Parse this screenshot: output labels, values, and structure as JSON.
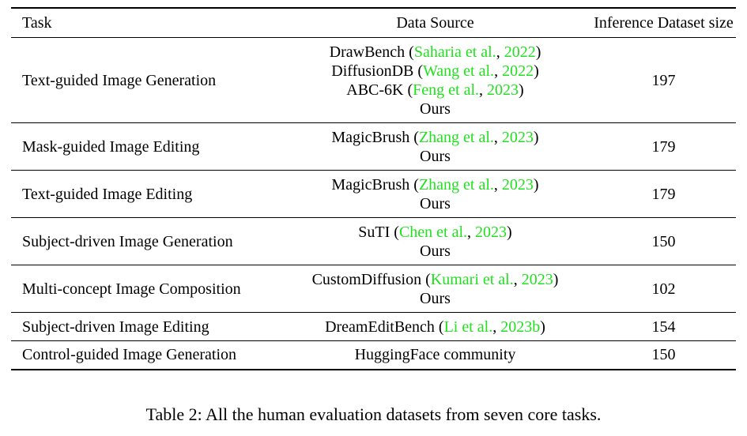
{
  "table": {
    "headers": {
      "task": "Task",
      "source": "Data Source",
      "size": "Inference Dataset size"
    },
    "rows": [
      {
        "task": "Text-guided Image Generation",
        "sources": [
          {
            "name": "DrawBench",
            "authors": "Saharia et al.",
            "year": "2022"
          },
          {
            "name": "DiffusionDB",
            "authors": "Wang et al.",
            "year": "2022"
          },
          {
            "name": "ABC-6K",
            "authors": "Feng et al.",
            "year": "2023"
          },
          {
            "name": "Ours"
          }
        ],
        "size": "197"
      },
      {
        "task": "Mask-guided Image Editing",
        "sources": [
          {
            "name": "MagicBrush",
            "authors": "Zhang et al.",
            "year": "2023"
          },
          {
            "name": "Ours"
          }
        ],
        "size": "179"
      },
      {
        "task": "Text-guided Image Editing",
        "sources": [
          {
            "name": "MagicBrush",
            "authors": "Zhang et al.",
            "year": "2023"
          },
          {
            "name": "Ours"
          }
        ],
        "size": "179"
      },
      {
        "task": "Subject-driven Image Generation",
        "sources": [
          {
            "name": "SuTI",
            "authors": "Chen et al.",
            "year": "2023"
          },
          {
            "name": "Ours"
          }
        ],
        "size": "150"
      },
      {
        "task": "Multi-concept Image Composition",
        "sources": [
          {
            "name": "CustomDiffusion",
            "authors": "Kumari et al.",
            "year": "2023"
          },
          {
            "name": "Ours"
          }
        ],
        "size": "102"
      },
      {
        "task": "Subject-driven Image Editing",
        "sources": [
          {
            "name": "DreamEditBench",
            "authors": "Li et al.",
            "year": "2023b"
          }
        ],
        "size": "154"
      },
      {
        "task": "Control-guided Image Generation",
        "sources": [
          {
            "name": "HuggingFace community"
          }
        ],
        "size": "150"
      }
    ]
  },
  "caption": "Table 2: All the human evaluation datasets from seven core tasks.",
  "colors": {
    "citation": "#22e01f",
    "text": "#000000"
  }
}
